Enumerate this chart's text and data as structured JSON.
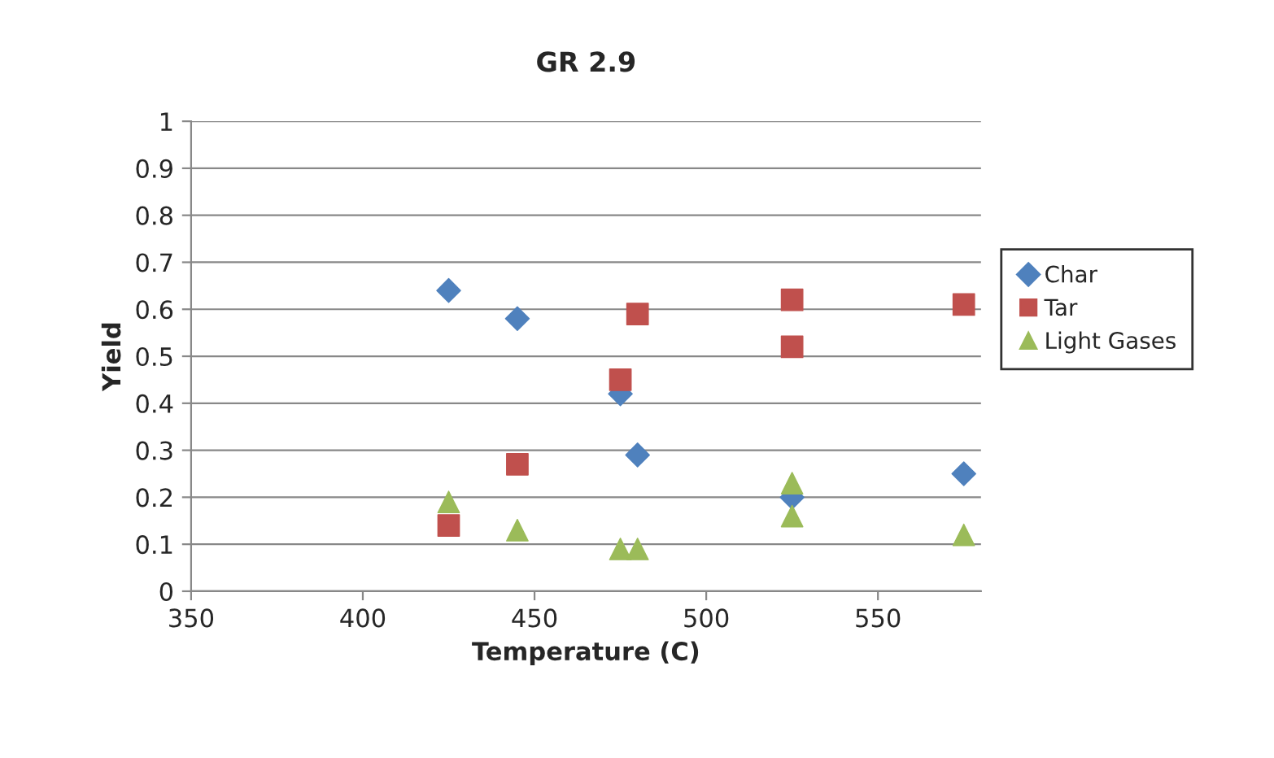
{
  "chart_data": {
    "type": "scatter",
    "title": "GR 2.9",
    "xlabel": "Temperature (C)",
    "ylabel": "Yield",
    "series": [
      {
        "name": "Char",
        "color": "#4f81bd",
        "marker": "diamond",
        "x": [
          425,
          445,
          475,
          480,
          525,
          575
        ],
        "values": [
          0.64,
          0.58,
          0.42,
          0.29,
          0.2,
          0.25
        ]
      },
      {
        "name": "Tar",
        "color": "#c0504d",
        "marker": "square",
        "x": [
          425,
          445,
          475,
          480,
          525,
          525,
          575
        ],
        "values": [
          0.14,
          0.27,
          0.45,
          0.59,
          0.62,
          0.52,
          0.61
        ]
      },
      {
        "name": "Light Gases",
        "color": "#9bbb59",
        "marker": "triangle",
        "x": [
          425,
          445,
          475,
          480,
          525,
          525,
          575
        ],
        "values": [
          0.19,
          0.13,
          0.09,
          0.09,
          0.23,
          0.16,
          0.12
        ]
      }
    ],
    "xlim": [
      350,
      580
    ],
    "xticks": [
      350,
      400,
      450,
      500,
      550
    ],
    "ylim": [
      0,
      1
    ],
    "yticks": [
      0,
      0.1,
      0.2,
      0.3,
      0.4,
      0.5,
      0.6,
      0.7,
      0.8,
      0.9,
      1
    ],
    "grid": "y",
    "legend": "right"
  }
}
